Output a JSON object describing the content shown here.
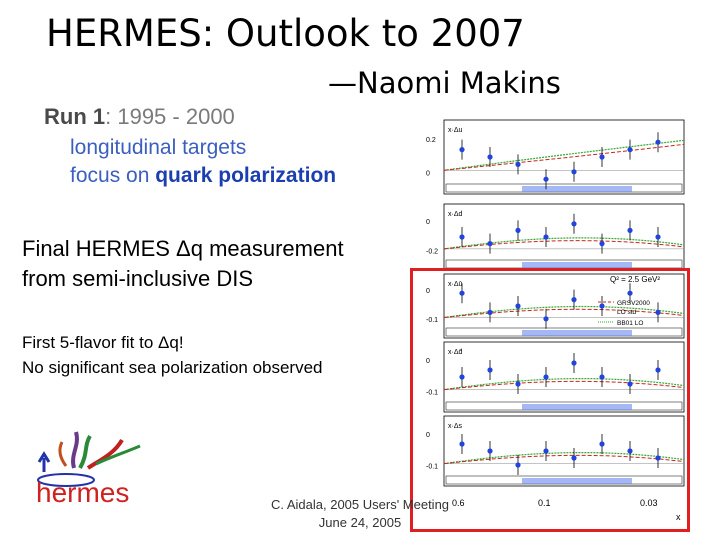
{
  "slide": {
    "title": "HERMES: Outlook to 2007",
    "author": "—Naomi Makins",
    "run1_label": "Run 1",
    "run1_years": ": 1995 - 2000",
    "run1_line1": "longitudinal targets",
    "run1_line2_prefix": "focus on ",
    "run1_line2_bold": "quark polarization",
    "final_line1": "Final HERMES Δq measurement",
    "final_line2": "from semi-inclusive DIS",
    "fit_line1": "First 5-flavor fit to Δq!",
    "fit_line2": "No significant sea polarization observed",
    "footer_line1": "C. Aidala, 2005 Users' Meeting",
    "footer_line2": "June 24, 2005",
    "logo_text": "hermes"
  },
  "figure": {
    "panel_labels": [
      "x·Δu",
      "x·Δd",
      "x·Δū",
      "x·Δd̄",
      "x·Δs"
    ],
    "y_ticks": [
      [
        "0.2",
        "0"
      ],
      [
        "0",
        "-0.2"
      ],
      [
        "0",
        "-0.1"
      ],
      [
        "0",
        "-0.1"
      ],
      [
        "0",
        "-0.1"
      ]
    ],
    "x_ticks": [
      "0.03",
      "0.1",
      "0.6"
    ],
    "x_axis_label": "x",
    "q2_label": "Q² = 2.5 GeV²",
    "legend": [
      "GRSV2000",
      "LO std",
      "BB01 LO"
    ],
    "colors": {
      "points": "#2244dd",
      "curve_red": "#cc2222",
      "curve_green": "#33aa33",
      "bands": "#6688ee",
      "highlight": "#e02020"
    }
  }
}
